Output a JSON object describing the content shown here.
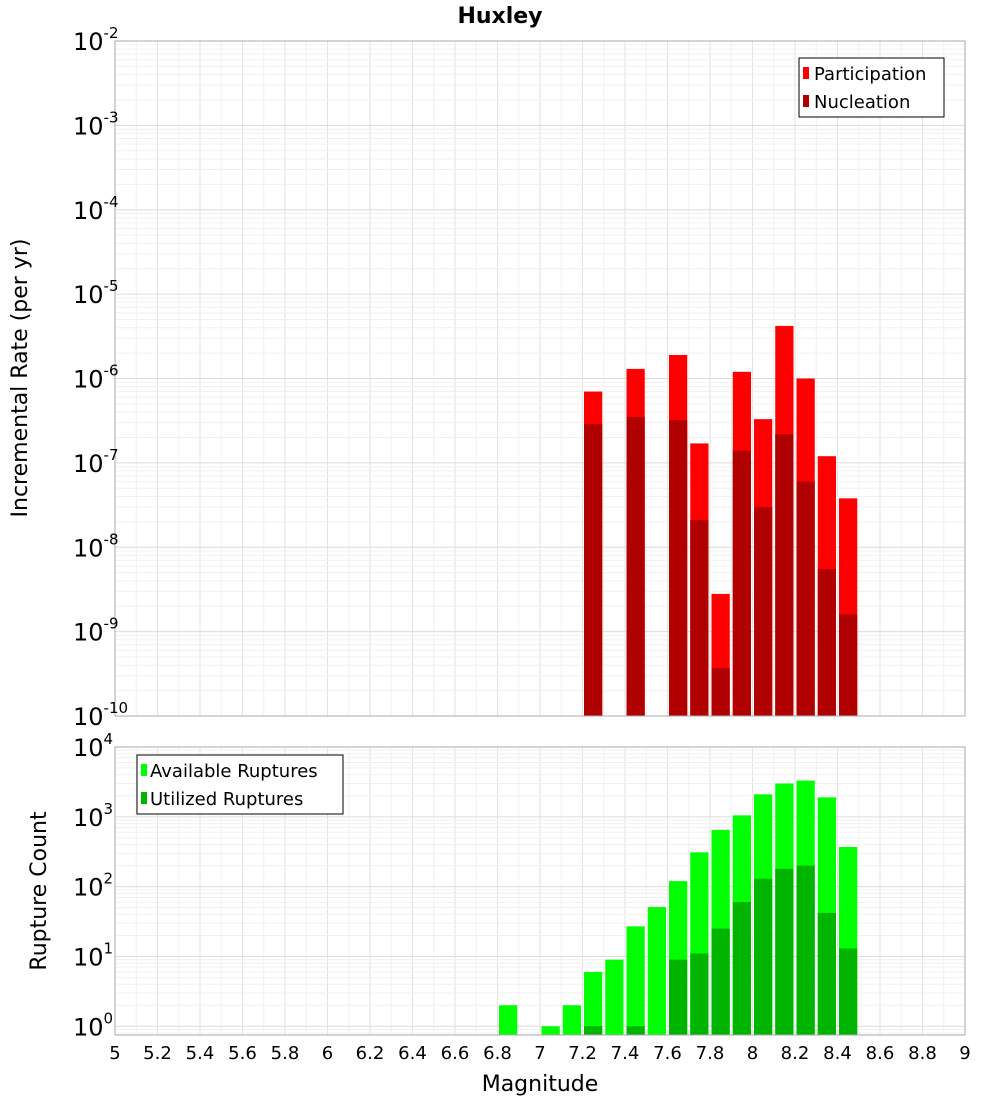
{
  "chart_data": [
    {
      "type": "bar",
      "title": "Huxley",
      "xlabel": "",
      "ylabel": "Incremental Rate (per yr)",
      "xlim": [
        5,
        9
      ],
      "ylim": [
        1e-10,
        0.01
      ],
      "yscale": "log",
      "grid": true,
      "legend_position": "top-right",
      "x": [
        7.25,
        7.45,
        7.65,
        7.75,
        7.85,
        7.95,
        8.05,
        8.15,
        8.25,
        8.35,
        8.45
      ],
      "series": [
        {
          "name": "Participation",
          "color": "#ff0000",
          "values": [
            7e-07,
            1.3e-06,
            1.9e-06,
            1.7e-07,
            2.8e-09,
            1.2e-06,
            3.3e-07,
            4.2e-06,
            1e-06,
            1.2e-07,
            3.8e-08
          ]
        },
        {
          "name": "Nucleation",
          "color": "#b00000",
          "values": [
            2.9e-07,
            3.5e-07,
            3.2e-07,
            2.1e-08,
            3.7e-10,
            1.4e-07,
            3e-08,
            2.2e-07,
            6e-08,
            5.5e-09,
            1.6e-09
          ]
        }
      ]
    },
    {
      "type": "bar",
      "title": "",
      "xlabel": "Magnitude",
      "ylabel": "Rupture Count",
      "xlim": [
        5,
        9
      ],
      "ylim": [
        0.75,
        10000
      ],
      "yscale": "log",
      "grid": true,
      "legend_position": "top-left",
      "x": [
        6.85,
        7.05,
        7.15,
        7.25,
        7.35,
        7.45,
        7.55,
        7.65,
        7.75,
        7.85,
        7.95,
        8.05,
        8.15,
        8.25,
        8.35,
        8.45
      ],
      "series": [
        {
          "name": "Available Ruptures",
          "color": "#00ff00",
          "values": [
            2,
            1,
            2,
            6,
            9,
            27,
            51,
            120,
            310,
            650,
            1050,
            2100,
            3000,
            3300,
            1900,
            370
          ]
        },
        {
          "name": "Utilized Ruptures",
          "color": "#00b400",
          "values": [
            0,
            0,
            0,
            1,
            0,
            1,
            0,
            9,
            11,
            25,
            60,
            130,
            180,
            200,
            42,
            13
          ]
        }
      ]
    }
  ],
  "x_ticks": [
    "5",
    "5.2",
    "5.4",
    "5.6",
    "5.8",
    "6",
    "6.2",
    "6.4",
    "6.6",
    "6.8",
    "7",
    "7.2",
    "7.4",
    "7.6",
    "7.8",
    "8",
    "8.2",
    "8.4",
    "8.6",
    "8.8",
    "9"
  ],
  "top_y_ticks": [
    {
      "base": "10",
      "exp": "-2"
    },
    {
      "base": "10",
      "exp": "-3"
    },
    {
      "base": "10",
      "exp": "-4"
    },
    {
      "base": "10",
      "exp": "-5"
    },
    {
      "base": "10",
      "exp": "-6"
    },
    {
      "base": "10",
      "exp": "-7"
    },
    {
      "base": "10",
      "exp": "-8"
    },
    {
      "base": "10",
      "exp": "-9"
    },
    {
      "base": "10",
      "exp": "-10"
    }
  ],
  "bottom_y_ticks": [
    {
      "base": "10",
      "exp": "4"
    },
    {
      "base": "10",
      "exp": "3"
    },
    {
      "base": "10",
      "exp": "2"
    },
    {
      "base": "10",
      "exp": "1"
    },
    {
      "base": "10",
      "exp": "0"
    }
  ]
}
